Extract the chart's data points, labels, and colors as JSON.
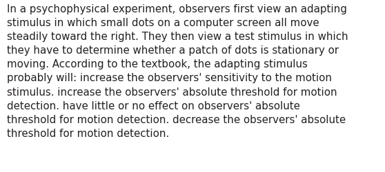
{
  "text": "In a psychophysical experiment, observers first view an adapting\nstimulus in which small dots on a computer screen all move\nsteadily toward the right. They then view a test stimulus in which\nthey have to determine whether a patch of dots is stationary or\nmoving. According to the textbook, the adapting stimulus\nprobably will: increase the observers' sensitivity to the motion\nstimulus. increase the observers' absolute threshold for motion\ndetection. have little or no effect on observers' absolute\nthreshold for motion detection. decrease the observers' absolute\nthreshold for motion detection.",
  "background_color": "#ffffff",
  "text_color": "#231f20",
  "font_size": 10.8,
  "fig_width": 5.58,
  "fig_height": 2.51,
  "dpi": 100
}
